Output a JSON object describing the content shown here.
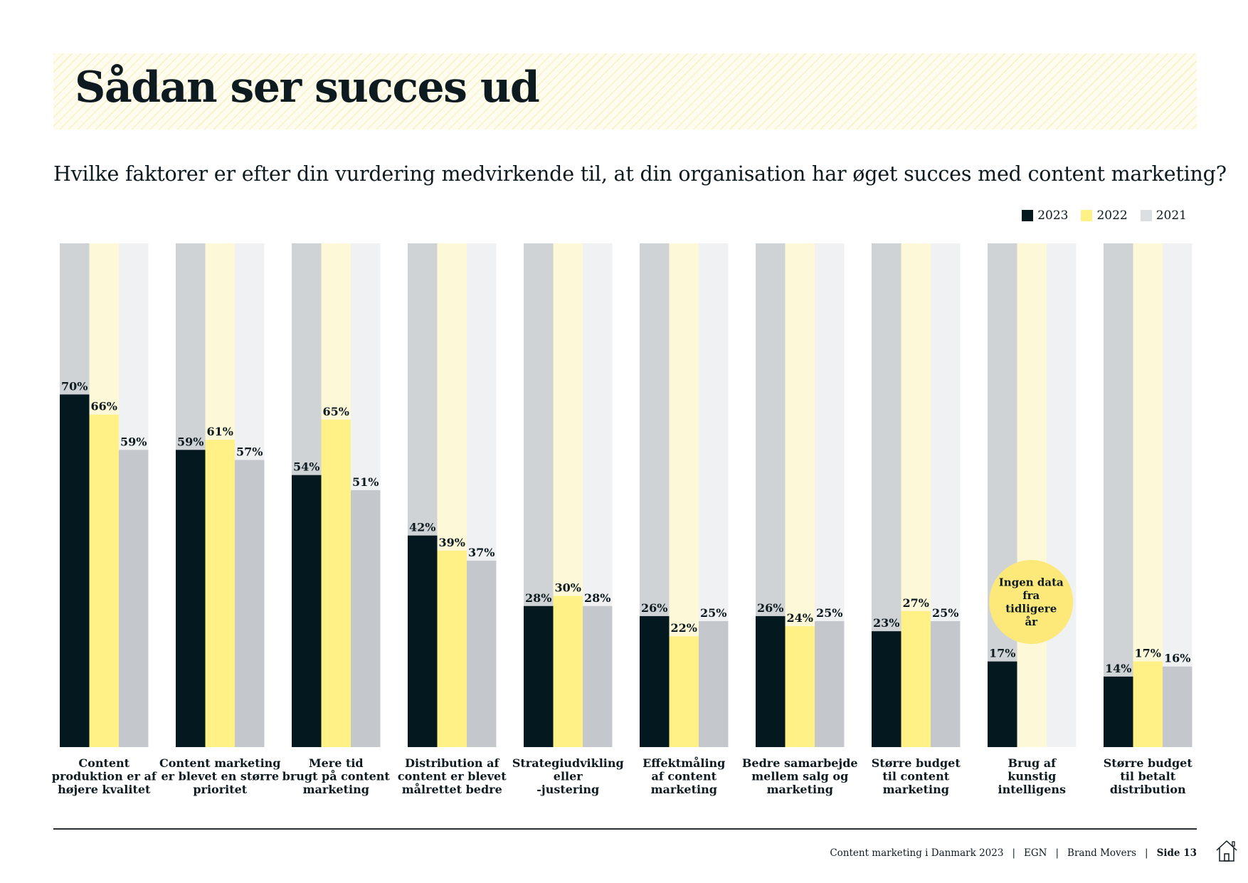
{
  "header": {
    "title": "Sådan ser succes ud",
    "question": "Hvilke faktorer er efter din vurdering medvirkende til, at din organisation har øget succes med content marketing?"
  },
  "colors": {
    "y2023": "#041820",
    "y2022": "#fff185",
    "y2021": "#c4c8cd",
    "bg2023": "#d0d3d6",
    "bg2022": "#fdf8d8",
    "bg2021": "#f0f1f2",
    "bubble": "#fce97a"
  },
  "chart_data": {
    "type": "bar",
    "title": "Hvilke faktorer er efter din vurdering medvirkende til, at din organisation har øget succes med content marketing?",
    "ylim": [
      0,
      100
    ],
    "legend": "top-right",
    "categories": [
      [
        "Content",
        "produktion er af",
        "højere kvalitet"
      ],
      [
        "Content marketing",
        "er blevet en større",
        "prioritet"
      ],
      [
        "Mere tid",
        "brugt på content",
        "marketing"
      ],
      [
        "Distribution af",
        "content er blevet",
        "målrettet bedre"
      ],
      [
        "Strategiudvikling",
        "eller",
        "-justering"
      ],
      [
        "Effektmåling",
        "af content",
        "marketing"
      ],
      [
        "Bedre samarbejde",
        "mellem salg og",
        "marketing"
      ],
      [
        "Større budget",
        "til content",
        "marketing"
      ],
      [
        "Brug af",
        "kunstig",
        "intelligens"
      ],
      [
        "Større budget",
        "til betalt",
        "distribution"
      ]
    ],
    "series": [
      {
        "name": "2023",
        "values": [
          70,
          59,
          54,
          42,
          28,
          26,
          26,
          23,
          17,
          14
        ]
      },
      {
        "name": "2022",
        "values": [
          66,
          61,
          65,
          39,
          30,
          22,
          24,
          27,
          null,
          17
        ]
      },
      {
        "name": "2021",
        "values": [
          59,
          57,
          51,
          37,
          28,
          25,
          25,
          25,
          null,
          16
        ]
      }
    ],
    "annotation": {
      "category_index": 8,
      "lines": [
        "Ingen data",
        "fra",
        "tidligere",
        "år"
      ]
    }
  },
  "footer": {
    "publication": "Content marketing i Danmark 2023",
    "sep1": "|",
    "org1": "EGN",
    "sep2": "|",
    "org2": "Brand Movers",
    "sep3": "|",
    "page": "Side 13"
  }
}
